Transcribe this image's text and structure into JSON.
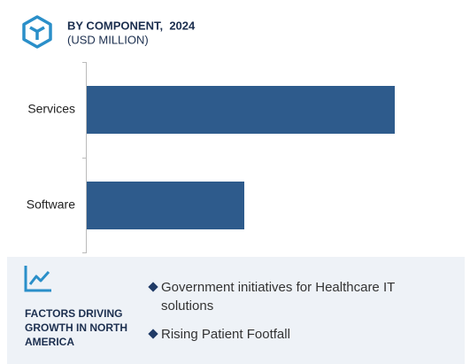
{
  "chart_data": {
    "type": "bar",
    "orientation": "horizontal",
    "title": "BY COMPONENT,  2024",
    "subtitle": "(USD MILLION)",
    "categories": [
      "Services",
      "Software"
    ],
    "values": [
      87,
      44.5
    ],
    "color": "#2e5b8c",
    "xlim": [
      0,
      100
    ]
  },
  "factors": {
    "title": "FACTORS DRIVING GROWTH IN NORTH AMERICA",
    "items": [
      "Government initiatives for Healthcare IT solutions",
      "Rising Patient Footfall"
    ]
  }
}
